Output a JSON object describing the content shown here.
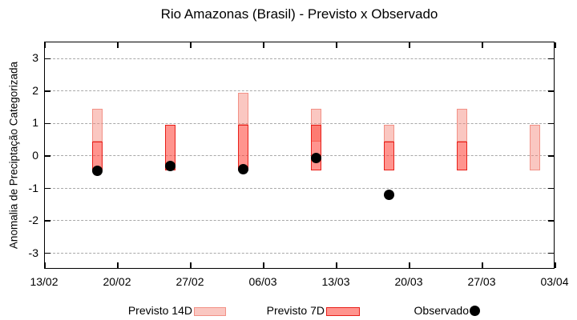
{
  "title": "Rio Amazonas (Brasil) - Previsto x Observado",
  "chart_data": {
    "type": "bar",
    "subtype": "range-bars-with-scatter-overlay",
    "title": "Rio Amazonas (Brasil) - Previsto x Observado",
    "xlabel": "",
    "ylabel": "Anomalia de Preciptação Categorizada",
    "ylim": [
      -3.5,
      3.5
    ],
    "yticks": [
      3,
      2,
      1,
      0,
      -1,
      -2,
      -3
    ],
    "xlim_days": [
      0,
      49
    ],
    "xticks": [
      {
        "day": 0,
        "label": "13/02"
      },
      {
        "day": 7,
        "label": "20/02"
      },
      {
        "day": 14,
        "label": "27/02"
      },
      {
        "day": 21,
        "label": "06/03"
      },
      {
        "day": 28,
        "label": "13/03"
      },
      {
        "day": 35,
        "label": "20/03"
      },
      {
        "day": 42,
        "label": "27/03"
      },
      {
        "day": 49,
        "label": "03/04"
      }
    ],
    "grid": {
      "horizontal": true,
      "vertical": false,
      "style": "dashed",
      "color": "#a9a9a9"
    },
    "legend_position": "bottom",
    "bar_width_days": 1,
    "series": [
      {
        "name": "Previsto 14D",
        "type": "range-bar",
        "fill_rgba": "rgba(245,130,118,0.45)",
        "fill_on_white": "#fac7c1",
        "border": "#f29186",
        "points": [
          {
            "date": "18/02",
            "day": 5,
            "low": 0.45,
            "high": 1.45
          },
          {
            "date": "04/03",
            "day": 19,
            "low": 0.95,
            "high": 1.95
          },
          {
            "date": "11/03",
            "day": 26,
            "low": 0.45,
            "high": 1.45
          },
          {
            "date": "18/03",
            "day": 33,
            "low": 0.45,
            "high": 0.95
          },
          {
            "date": "25/03",
            "day": 40,
            "low": 0.45,
            "high": 1.45
          },
          {
            "date": "01/04",
            "day": 47,
            "low": -0.45,
            "high": 0.95
          }
        ]
      },
      {
        "name": "Previsto 7D",
        "type": "range-bar",
        "fill_rgba": "rgba(255,60,50,0.55)",
        "fill_on_white": "#ff948e",
        "border": "#e8201a",
        "points": [
          {
            "date": "18/02",
            "day": 5,
            "low": -0.45,
            "high": 0.45
          },
          {
            "date": "25/02",
            "day": 12,
            "low": -0.45,
            "high": 0.95
          },
          {
            "date": "04/03",
            "day": 19,
            "low": -0.45,
            "high": 0.95
          },
          {
            "date": "11/03",
            "day": 26,
            "low": -0.45,
            "high": 0.95
          },
          {
            "date": "18/03",
            "day": 33,
            "low": -0.45,
            "high": 0.45
          },
          {
            "date": "25/03",
            "day": 40,
            "low": -0.45,
            "high": 0.45
          }
        ]
      },
      {
        "name": "Observado",
        "type": "scatter",
        "color": "#000000",
        "marker": "filled-circle",
        "points": [
          {
            "date": "18/02",
            "day": 5,
            "value": -0.45
          },
          {
            "date": "25/02",
            "day": 12,
            "value": -0.3
          },
          {
            "date": "04/03",
            "day": 19,
            "value": -0.4
          },
          {
            "date": "11/03",
            "day": 26,
            "value": -0.05
          },
          {
            "date": "18/03",
            "day": 33,
            "value": -1.2
          }
        ]
      }
    ]
  },
  "legend": {
    "items": [
      {
        "label": "Previsto 14D",
        "kind": "box",
        "fill": "#fac7c1",
        "border": "#f29186"
      },
      {
        "label": "Previsto 7D",
        "kind": "box",
        "fill": "#ff948e",
        "border": "#e8201a"
      },
      {
        "label": "Observado",
        "kind": "dot",
        "fill": "#000000",
        "border": "#000000"
      }
    ]
  }
}
